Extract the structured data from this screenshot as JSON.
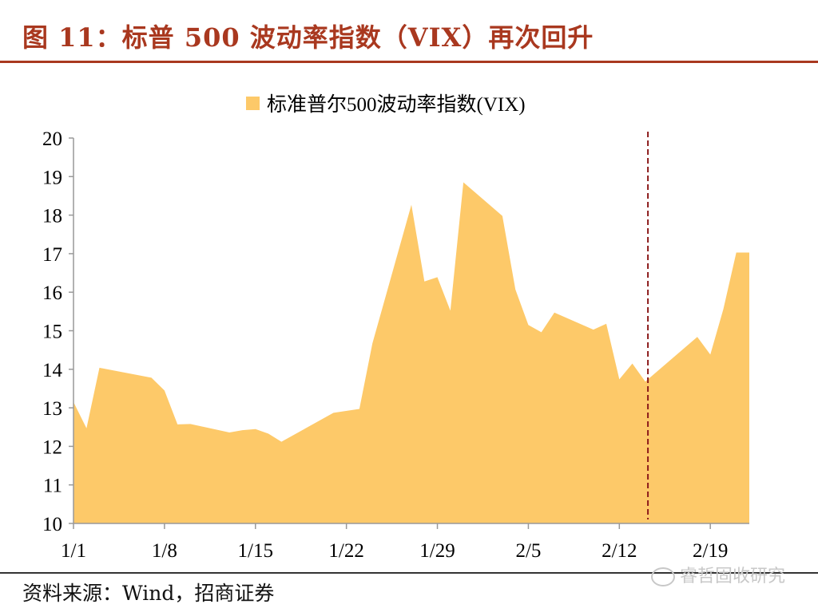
{
  "header": {
    "title": "图 11：标普 500 波动率指数（VIX）再次回升"
  },
  "footer": {
    "source": "资料来源：Wind，招商证券",
    "watermark": "睿哲固收研究"
  },
  "colors": {
    "accent": "#a9381f",
    "area_fill": "#fdc969",
    "marker_line": "#8b1a1a"
  },
  "chart_data": {
    "type": "area",
    "legend": {
      "label": "标准普尔500波动率指数(VIX)",
      "placement": "top-center"
    },
    "ylim": [
      10,
      20
    ],
    "yticks": [
      "10",
      "11",
      "12",
      "13",
      "14",
      "15",
      "16",
      "17",
      "18",
      "19",
      "20"
    ],
    "x_tick_labels": [
      "1/1",
      "1/8",
      "1/15",
      "1/22",
      "1/29",
      "2/5",
      "2/12",
      "2/19"
    ],
    "x_tick_days": [
      0,
      7,
      14,
      21,
      28,
      35,
      42,
      49
    ],
    "xlim_days": [
      0,
      52
    ],
    "series": [
      {
        "days": [
          0,
          1,
          2,
          6,
          7,
          8,
          9,
          12,
          13,
          14,
          15,
          16,
          20,
          22,
          23,
          26,
          27,
          28,
          29,
          30,
          33,
          34,
          35,
          36,
          37,
          40,
          41,
          42,
          43,
          44,
          48,
          49,
          50,
          51,
          52
        ],
        "values": [
          13.15,
          12.47,
          14.04,
          13.78,
          13.45,
          12.57,
          12.58,
          12.36,
          12.42,
          12.45,
          12.33,
          12.12,
          12.87,
          12.97,
          14.67,
          18.27,
          16.28,
          16.39,
          15.52,
          18.85,
          17.98,
          16.07,
          15.15,
          14.96,
          15.47,
          15.03,
          15.18,
          13.74,
          14.15,
          13.68,
          14.84,
          14.38,
          15.56,
          17.03,
          17.03
        ]
      }
    ],
    "marker": {
      "type": "vertical-dashed-line",
      "day": 44.2
    },
    "grid": false
  }
}
